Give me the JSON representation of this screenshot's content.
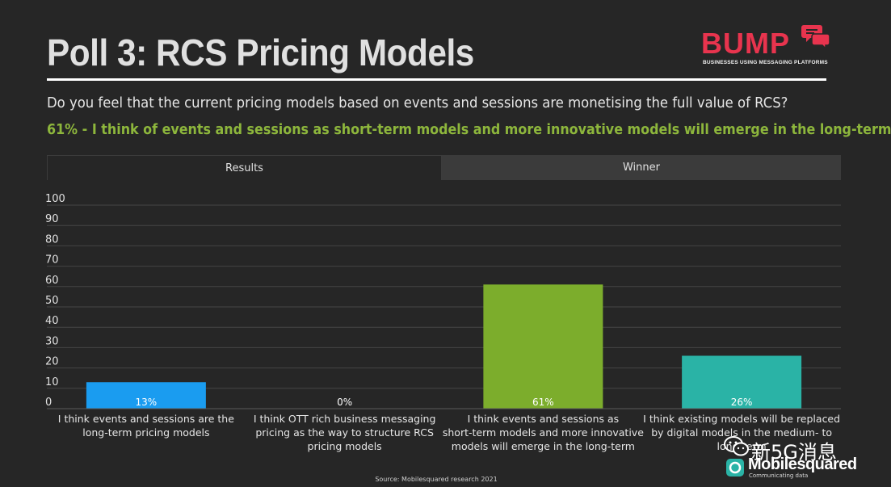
{
  "slide": {
    "title": "Poll 3: RCS Pricing Models",
    "question": "Do you feel that the current pricing models based on events and sessions are monetising the full value of RCS?",
    "answer": "61% - I think of events and sessions as short-term models and more innovative models will emerge in the long-term",
    "source": "Source: Mobilesquared research 2021"
  },
  "logo": {
    "name": "BUMP",
    "tagline": "BUSINESSES USING MESSAGING PLATFORMS",
    "color": "#e8344e"
  },
  "tabs": [
    {
      "label": "Results"
    },
    {
      "label": "Winner"
    }
  ],
  "watermark": {
    "wechat_text": "新5G消息",
    "company": "Mobilesquared",
    "company_tagline": "Communicating data"
  },
  "chart_data": {
    "type": "bar",
    "categories": [
      [
        "I think events and sessions are the",
        "long-term pricing models"
      ],
      [
        "I think OTT rich business messaging",
        "pricing as the way to structure RCS",
        "pricing models"
      ],
      [
        "I think events and sessions as",
        "short-term models and more innovative",
        "models will emerge in the long-term"
      ],
      [
        "I think existing models will be replaced",
        "by digital models in the medium- to",
        "long-term"
      ]
    ],
    "values": [
      13,
      0,
      61,
      26
    ],
    "data_labels": [
      "13%",
      "0%",
      "61%",
      "26%"
    ],
    "colors": [
      "#1a9cf0",
      "#1a9cf0",
      "#7cad2c",
      "#2ab3a6"
    ],
    "ylim": [
      0,
      100
    ],
    "yticks": [
      0,
      10,
      20,
      30,
      40,
      50,
      60,
      70,
      80,
      90,
      100
    ],
    "grid": true
  }
}
